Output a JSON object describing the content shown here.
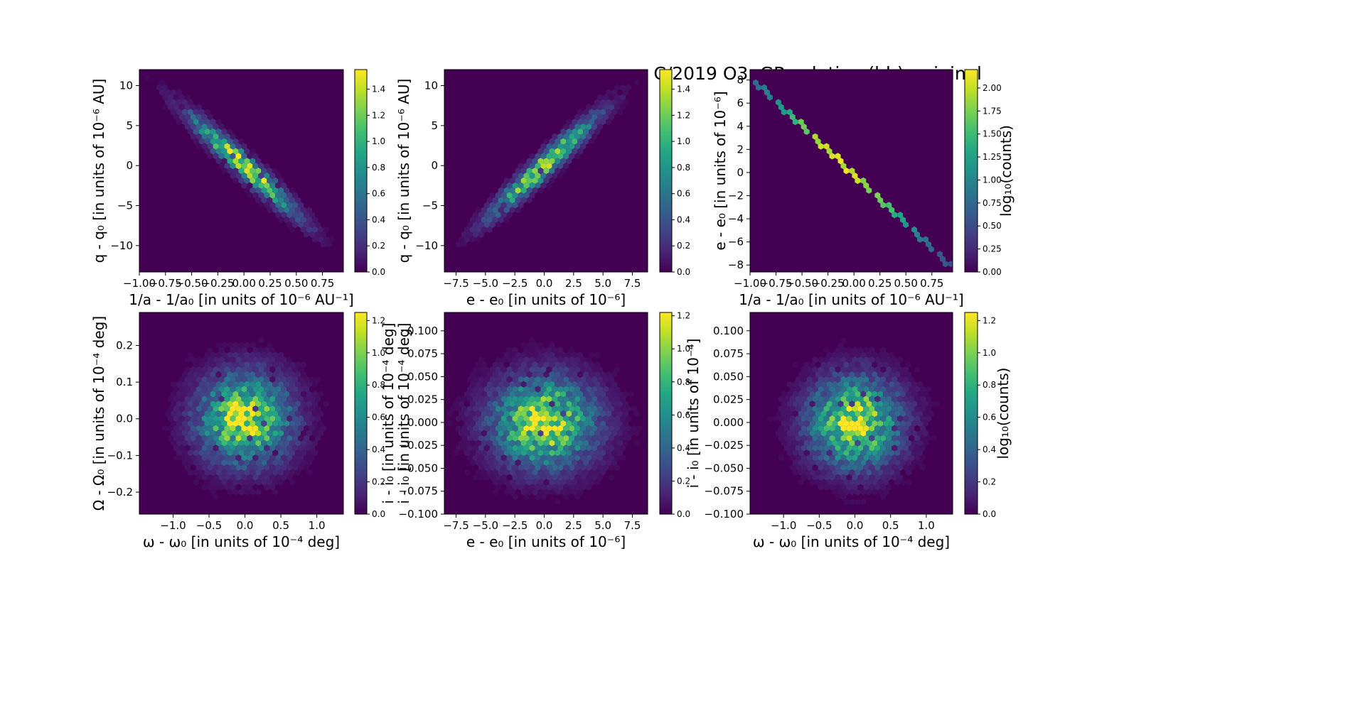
{
  "figure": {
    "title": "C/2019 O3: GR solution (bb), original"
  },
  "colormap": [
    "#440154",
    "#482475",
    "#414487",
    "#355f8d",
    "#2a788e",
    "#21918c",
    "#22a884",
    "#44bf70",
    "#7ad151",
    "#bddf26",
    "#fde725"
  ],
  "chart_data": [
    {
      "type": "heatmap",
      "subtype": "hexbin",
      "xlabel": "1/a - 1/a₀ [in units of 10⁻⁶ AU⁻¹]",
      "ylabel": "q - q₀ [in units of 10⁻⁶ AU]",
      "xlim": [
        -1.0,
        0.95
      ],
      "ylim": [
        -13.3,
        12.0
      ],
      "xticks": [
        -1.0,
        -0.75,
        -0.5,
        -0.25,
        0.0,
        0.25,
        0.5,
        0.75
      ],
      "xticklabels": [
        "−1.00",
        "−0.75",
        "−0.50",
        "−0.25",
        "0.00",
        "0.25",
        "0.50",
        "0.75"
      ],
      "yticks": [
        -10,
        -5,
        0,
        5,
        10
      ],
      "yticklabels": [
        "−10",
        "−5",
        "0",
        "5",
        "10"
      ],
      "distribution": {
        "type": "correlated",
        "mx": 0.0,
        "my": 0.0,
        "sx": 0.33,
        "sy": 4.0,
        "rho": -0.96
      },
      "colorbar": {
        "label": "",
        "range": [
          0.0,
          1.55
        ],
        "ticks": [
          "0.0",
          "0.2",
          "0.4",
          "0.6",
          "0.8",
          "1.0",
          "1.2",
          "1.4"
        ]
      }
    },
    {
      "type": "heatmap",
      "subtype": "hexbin",
      "xlabel": "e - e₀ [in units of 10⁻⁶]",
      "ylabel": "q - q₀ [in units of 10⁻⁶ AU]",
      "xlim": [
        -8.5,
        8.8
      ],
      "ylim": [
        -13.3,
        12.0
      ],
      "xticks": [
        -7.5,
        -5.0,
        -2.5,
        0.0,
        2.5,
        5.0,
        7.5
      ],
      "xticklabels": [
        "−7.5",
        "−5.0",
        "−2.5",
        "0.0",
        "2.5",
        "5.0",
        "7.5"
      ],
      "yticks": [
        -10,
        -5,
        0,
        5,
        10
      ],
      "yticklabels": [
        "−10",
        "−5",
        "0",
        "5",
        "10"
      ],
      "distribution": {
        "type": "correlated",
        "mx": 0.0,
        "my": 0.0,
        "sx": 2.9,
        "sy": 4.0,
        "rho": 0.96
      },
      "colorbar": {
        "label": "",
        "range": [
          0.0,
          1.55
        ],
        "ticks": [
          "0.0",
          "0.2",
          "0.4",
          "0.6",
          "0.8",
          "1.0",
          "1.2",
          "1.4"
        ]
      }
    },
    {
      "type": "heatmap",
      "subtype": "hexbin",
      "xlabel": "1/a - 1/a₀ [in units of 10⁻⁶ AU⁻¹]",
      "ylabel": "e - e₀ [in units of 10⁻⁶]",
      "xlim": [
        -1.0,
        0.95
      ],
      "ylim": [
        -8.6,
        8.9
      ],
      "xticks": [
        -1.0,
        -0.75,
        -0.5,
        -0.25,
        0.0,
        0.25,
        0.5,
        0.75
      ],
      "xticklabels": [
        "−1.00",
        "−0.75",
        "−0.50",
        "−0.25",
        "0.00",
        "0.25",
        "0.50",
        "0.75"
      ],
      "yticks": [
        -8,
        -6,
        -4,
        -2,
        0,
        2,
        4,
        6,
        8
      ],
      "yticklabels": [
        "−8",
        "−6",
        "−4",
        "−2",
        "0",
        "2",
        "4",
        "6",
        "8"
      ],
      "distribution": {
        "type": "line",
        "x0": -0.92,
        "y0": 7.6,
        "x1": 0.9,
        "y1": -7.8
      },
      "colorbar": {
        "label": "log₁₀(counts)",
        "range": [
          0.0,
          2.2
        ],
        "ticks": [
          "0.00",
          "0.25",
          "0.50",
          "0.75",
          "1.00",
          "1.25",
          "1.50",
          "1.75",
          "2.00"
        ]
      }
    },
    {
      "type": "heatmap",
      "subtype": "hexbin",
      "xlabel": "ω - ω₀ [in units of 10⁻⁴ deg]",
      "ylabel": "Ω - Ω₀ [in units of 10⁻⁴ deg]",
      "xlim": [
        -1.47,
        1.37
      ],
      "ylim": [
        -0.26,
        0.29
      ],
      "xticks": [
        -1.0,
        -0.5,
        0.0,
        0.5,
        1.0
      ],
      "xticklabels": [
        "−1.0",
        "−0.5",
        "0.0",
        "0.5",
        "1.0"
      ],
      "yticks": [
        -0.2,
        -0.1,
        0.0,
        0.1,
        0.2
      ],
      "yticklabels": [
        "−0.2",
        "−0.1",
        "0.0",
        "0.1",
        "0.2"
      ],
      "distribution": {
        "type": "gauss",
        "mx": 0.0,
        "my": 0.0,
        "sx": 0.42,
        "sy": 0.08
      },
      "colorbar": {
        "label": "i - i₀ [in units of 10⁻⁴ deg]",
        "range": [
          0.0,
          1.25
        ],
        "ticks": [
          "0.0",
          "0.2",
          "0.4",
          "0.6",
          "0.8",
          "1.0",
          "1.2"
        ]
      }
    },
    {
      "type": "heatmap",
      "subtype": "hexbin",
      "xlabel": "e - e₀ [in units of 10⁻⁶]",
      "ylabel": "i - i₀ [in units of 10⁻⁴ deg]",
      "xlim": [
        -8.5,
        8.8
      ],
      "ylim": [
        -0.1,
        0.12
      ],
      "xticks": [
        -7.5,
        -5.0,
        -2.5,
        0.0,
        2.5,
        5.0,
        7.5
      ],
      "xticklabels": [
        "−7.5",
        "−5.0",
        "−2.5",
        "0.0",
        "2.5",
        "5.0",
        "7.5"
      ],
      "yticks": [
        -0.1,
        -0.075,
        -0.05,
        -0.025,
        0.0,
        0.025,
        0.05,
        0.075,
        0.1
      ],
      "yticklabels": [
        "−0.100",
        "−0.075",
        "−0.050",
        "−0.025",
        "0.000",
        "0.025",
        "0.050",
        "0.075",
        "0.100"
      ],
      "distribution": {
        "type": "gauss",
        "mx": 0.0,
        "my": 0.0,
        "sx": 2.9,
        "sy": 0.032
      },
      "colorbar": {
        "label": "i - i₀ [in units of 10⁻⁴]",
        "range": [
          0.0,
          1.22
        ],
        "ticks": [
          "0.0",
          "0.2",
          "0.4",
          "0.6",
          "0.8",
          "1.0",
          "1.2"
        ]
      }
    },
    {
      "type": "heatmap",
      "subtype": "hexbin",
      "xlabel": "ω - ω₀ [in units of 10⁻⁴ deg]",
      "ylabel": "",
      "xlim": [
        -1.47,
        1.37
      ],
      "ylim": [
        -0.1,
        0.12
      ],
      "xticks": [
        -1.0,
        -0.5,
        0.0,
        0.5,
        1.0
      ],
      "xticklabels": [
        "−1.0",
        "−0.5",
        "0.0",
        "0.5",
        "1.0"
      ],
      "yticks": [
        -0.1,
        -0.075,
        -0.05,
        -0.025,
        0.0,
        0.025,
        0.05,
        0.075,
        0.1
      ],
      "yticklabels": [
        "−0.100",
        "−0.075",
        "−0.050",
        "−0.025",
        "0.000",
        "0.025",
        "0.050",
        "0.075",
        "0.100"
      ],
      "distribution": {
        "type": "gauss",
        "mx": 0.0,
        "my": 0.0,
        "sx": 0.42,
        "sy": 0.032
      },
      "colorbar": {
        "label": "log₁₀(counts)",
        "range": [
          0.0,
          1.25
        ],
        "ticks": [
          "0.0",
          "0.2",
          "0.4",
          "0.6",
          "0.8",
          "1.0",
          "1.2"
        ]
      }
    }
  ]
}
